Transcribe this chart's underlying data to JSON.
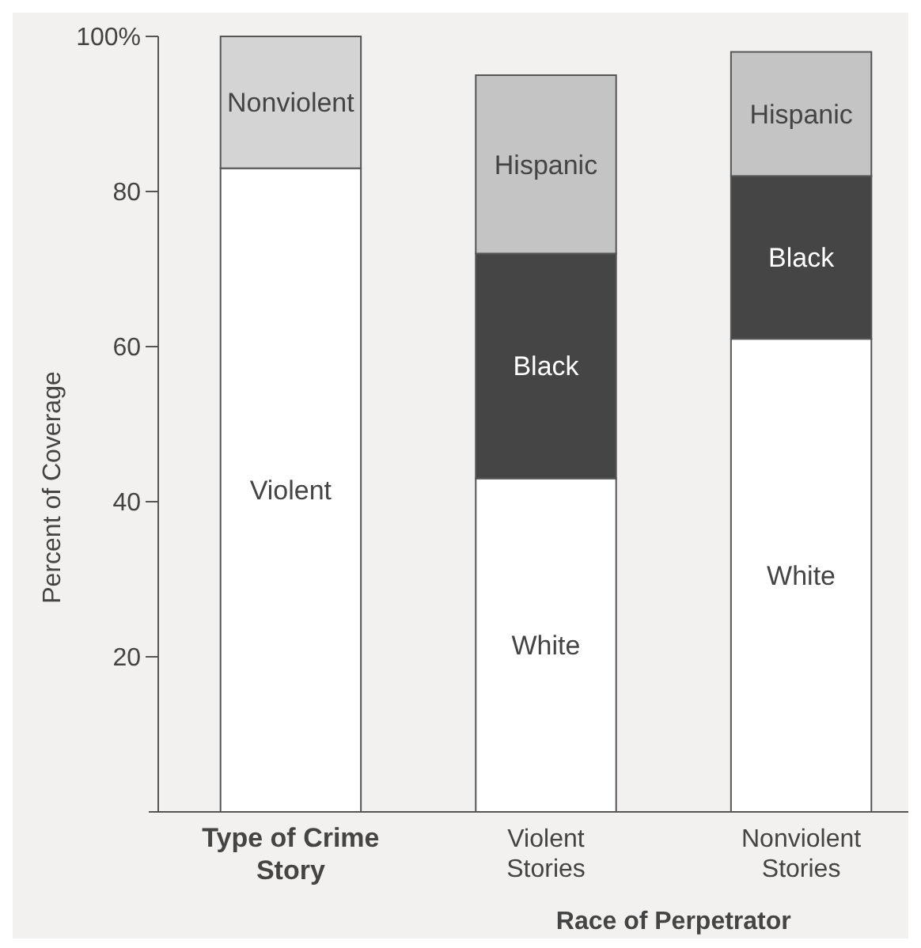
{
  "chart_data": {
    "type": "bar",
    "stacked": true,
    "ylabel": "Percent of Coverage",
    "xlabel": "Race of Perpetrator",
    "categories": [
      "Type of Crime Story",
      "Violent Stories",
      "Nonviolent Stories"
    ],
    "series": [
      {
        "name": "Violent",
        "color": "#ffffff",
        "values": [
          83,
          null,
          null
        ]
      },
      {
        "name": "Nonviolent",
        "color": "#d4d4d4",
        "values": [
          17,
          null,
          null
        ]
      },
      {
        "name": "White",
        "color": "#ffffff",
        "values": [
          null,
          43,
          61
        ]
      },
      {
        "name": "Black",
        "color": "#454545",
        "values": [
          null,
          29,
          21
        ]
      },
      {
        "name": "Hispanic",
        "color": "#c4c4c4",
        "values": [
          null,
          23,
          16
        ]
      }
    ],
    "ylim": [
      0,
      100
    ],
    "yticks": [
      20,
      40,
      60,
      80,
      {
        "value": 100,
        "label": "100%"
      }
    ],
    "grid": false
  }
}
